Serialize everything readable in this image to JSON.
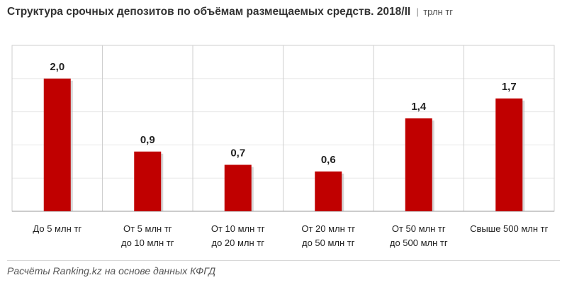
{
  "header": {
    "title": "Структура срочных депозитов по объёмам размещаемых средств. 2018/II",
    "separator": "|",
    "unit": "трлн тг"
  },
  "chart_data": {
    "type": "bar",
    "title": "Структура срочных депозитов по объёмам размещаемых средств. 2018/II",
    "unit": "трлн тг",
    "categories": [
      [
        "До 5 млн тг"
      ],
      [
        "От 5 млн тг",
        "до 10 млн тг"
      ],
      [
        "От 10 млн тг",
        "до 20 млн тг"
      ],
      [
        "От 20 млн тг",
        "до 50 млн тг"
      ],
      [
        "От 50 млн тг",
        "до 500 млн тг"
      ],
      [
        "Свыше 500 млн тг"
      ]
    ],
    "values": [
      2.0,
      0.9,
      0.7,
      0.6,
      1.4,
      1.7
    ],
    "value_labels": [
      "2,0",
      "0,9",
      "0,7",
      "0,6",
      "1,4",
      "1,7"
    ],
    "ylim": [
      0,
      2.5
    ],
    "gridlines": [
      0.5,
      1.0,
      1.5,
      2.0,
      2.5
    ],
    "bar_color": "#c00000"
  },
  "footer": {
    "source": "Расчёты Ranking.kz на основе данных КФГД"
  }
}
